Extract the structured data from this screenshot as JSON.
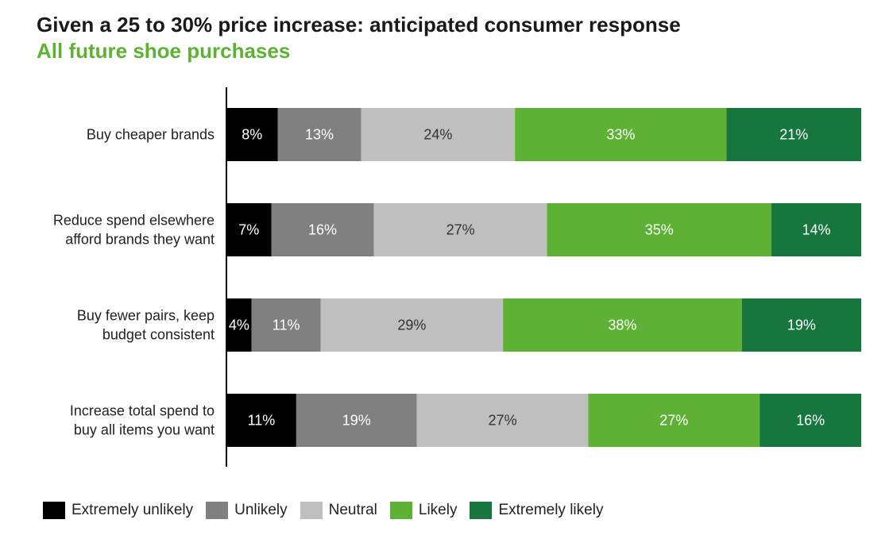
{
  "title": "Given a 25 to 30% price increase: anticipated consumer response",
  "subtitle": "All future shoe purchases",
  "chart_data": {
    "type": "bar",
    "orientation": "horizontal",
    "stacked": true,
    "unit": "%",
    "categories": [
      [
        "Buy cheaper brands"
      ],
      [
        "Reduce spend elsewhere",
        "afford brands they want"
      ],
      [
        "Buy fewer pairs, keep",
        "budget consistent"
      ],
      [
        "Increase total spend to",
        "buy all items you want"
      ]
    ],
    "series": [
      {
        "name": "Extremely unlikely",
        "color": "#000000",
        "text_color": "#ffffff",
        "values": [
          8,
          7,
          4,
          11
        ]
      },
      {
        "name": "Unlikely",
        "color": "#808080",
        "text_color": "#ffffff",
        "values": [
          13,
          16,
          11,
          19
        ]
      },
      {
        "name": "Neutral",
        "color": "#bfbfbf",
        "text_color": "#333333",
        "values": [
          24,
          27,
          29,
          27
        ]
      },
      {
        "name": "Likely",
        "color": "#5db236",
        "text_color": "#ffffff",
        "values": [
          33,
          35,
          38,
          27
        ]
      },
      {
        "name": "Extremely likely",
        "color": "#17763e",
        "text_color": "#ffffff",
        "values": [
          21,
          14,
          19,
          16
        ]
      }
    ],
    "legend_position": "bottom-left",
    "grid": false
  }
}
